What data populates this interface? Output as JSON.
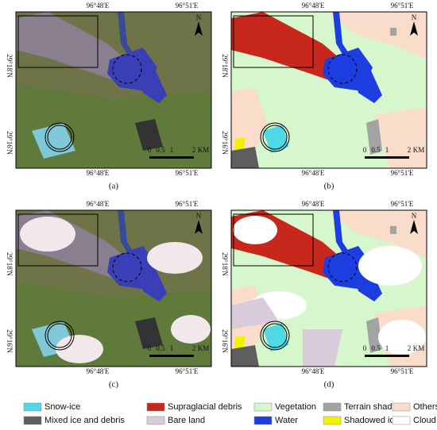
{
  "panels": [
    {
      "caption": "(a)",
      "kind": "satellite",
      "clouds": false
    },
    {
      "caption": "(b)",
      "kind": "classified",
      "clouds": false
    },
    {
      "caption": "(c)",
      "kind": "satellite",
      "clouds": true
    },
    {
      "caption": "(d)",
      "kind": "classified",
      "clouds": true
    }
  ],
  "lon_labels": [
    "96°48'E",
    "96°51'E"
  ],
  "lat_labels": [
    "29°18'N",
    "29°16'N"
  ],
  "north": "N",
  "scale_labels": [
    "0",
    "0.5",
    "1",
    "2",
    "KM"
  ],
  "legend": [
    {
      "label": "Snow-ice",
      "color": "#4fd8e6"
    },
    {
      "label": "Supraglacial debris",
      "color": "#c8281c"
    },
    {
      "label": "Vegetation",
      "color": "#d6f6cc"
    },
    {
      "label": "Terrain shadows",
      "color": "#a3a3a3"
    },
    {
      "label": "Others",
      "color": "#f9ddca"
    },
    {
      "label": "Mixed ice and debris",
      "color": "#5e5e5e"
    },
    {
      "label": "Bare land",
      "color": "#d9cbdc"
    },
    {
      "label": "Water",
      "color": "#1c3ee0"
    },
    {
      "label": "Shadowed ice",
      "color": "#f2f200"
    },
    {
      "label": "Cloud",
      "color": "#ffffff"
    }
  ]
}
